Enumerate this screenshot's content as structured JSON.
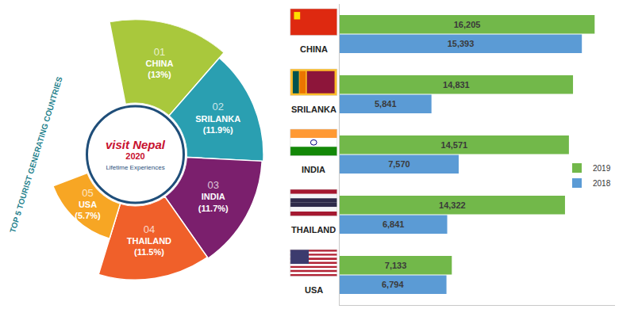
{
  "chart_data": [
    {
      "type": "polar_bar",
      "title": "TOP 5 TOURIST GENERATING COUNTRIES",
      "categories": [
        "CHINA",
        "SRILANKA",
        "INDIA",
        "THAILAND",
        "USA"
      ],
      "ranks": [
        "01",
        "02",
        "03",
        "04",
        "05"
      ],
      "values": [
        13,
        11.9,
        11.7,
        11.5,
        5.7
      ],
      "value_labels": [
        "(13%)",
        "(11.9%)",
        "(11.7%)",
        "(11.5%)",
        "(5.7%)"
      ],
      "colors": [
        "#a9c83c",
        "#2a9fb1",
        "#7b1f6d",
        "#f0602a",
        "#f7a624"
      ],
      "ylim": [
        0,
        13
      ],
      "data_labels": true,
      "annotations": [
        "visit Nepal",
        "2020",
        "Lifetime Experiences"
      ]
    },
    {
      "type": "bar",
      "orientation": "horizontal",
      "categories": [
        "CHINA",
        "SRILANKA",
        "INDIA",
        "THAILAND",
        "USA"
      ],
      "series": [
        {
          "name": "2019",
          "color": "#72b84a",
          "values": [
            16205,
            14831,
            14571,
            14322,
            7133
          ],
          "value_labels": [
            "16,205",
            "14,831",
            "14,571",
            "14,322",
            "7,133"
          ]
        },
        {
          "name": "2018",
          "color": "#5b9bd5",
          "values": [
            15393,
            5841,
            7570,
            6841,
            6794
          ],
          "value_labels": [
            "15,393",
            "5,841",
            "7,570",
            "6,841",
            "6,794"
          ]
        }
      ],
      "xlim": [
        0,
        17500
      ],
      "data_labels": true,
      "tick_labels": "y",
      "legend": "right",
      "grid": false
    }
  ]
}
